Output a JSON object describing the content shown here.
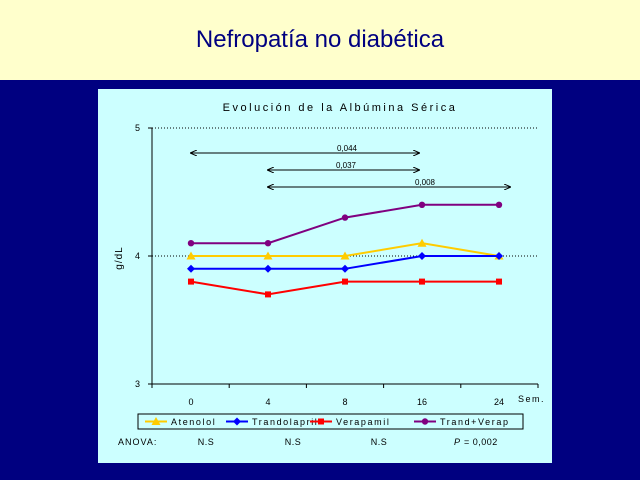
{
  "slide": {
    "title": "Nefropatía no diabética"
  },
  "colors": {
    "header_bg": "#ffffcc",
    "slide_bg": "#000080",
    "panel_bg": "#ccffff",
    "title_color": "#000080"
  },
  "chart_data": {
    "type": "line",
    "title": "Evolución de la Albúmina Sérica",
    "ylabel": "g/dL",
    "xlabel": "Sem.",
    "categories": [
      "0",
      "4",
      "8",
      "16",
      "24"
    ],
    "ylim": [
      3,
      5
    ],
    "y_ticks": [
      "3",
      "4",
      "5"
    ],
    "grid": "dotted horizontal at 4 and 5",
    "legend_position": "bottom",
    "series": [
      {
        "name": "Atenolol",
        "color": "#ffcc00",
        "marker": "triangle",
        "values": [
          4.0,
          4.0,
          4.0,
          4.1,
          4.0
        ]
      },
      {
        "name": "Trandolapril",
        "color": "#0000ff",
        "marker": "diamond",
        "values": [
          3.9,
          3.9,
          3.9,
          4.0,
          4.0
        ]
      },
      {
        "name": "Verapamil",
        "color": "#ff0000",
        "marker": "square",
        "values": [
          3.8,
          3.7,
          3.8,
          3.8,
          3.8
        ]
      },
      {
        "name": "Trand+Verap",
        "color": "#800080",
        "marker": "circle",
        "values": [
          4.1,
          4.1,
          4.3,
          4.4,
          4.4
        ]
      }
    ],
    "annotations": [
      {
        "label": "0,044",
        "from": "0",
        "to": "16"
      },
      {
        "label": "0,037",
        "from": "4",
        "to": "16"
      },
      {
        "label": "0,008",
        "from": "4",
        "to": "24"
      }
    ],
    "anova": {
      "label": "ANOVA:",
      "values": [
        "N.S",
        "N.S",
        "N.S"
      ],
      "p_label": "P",
      "p_value": "= 0,002"
    }
  }
}
